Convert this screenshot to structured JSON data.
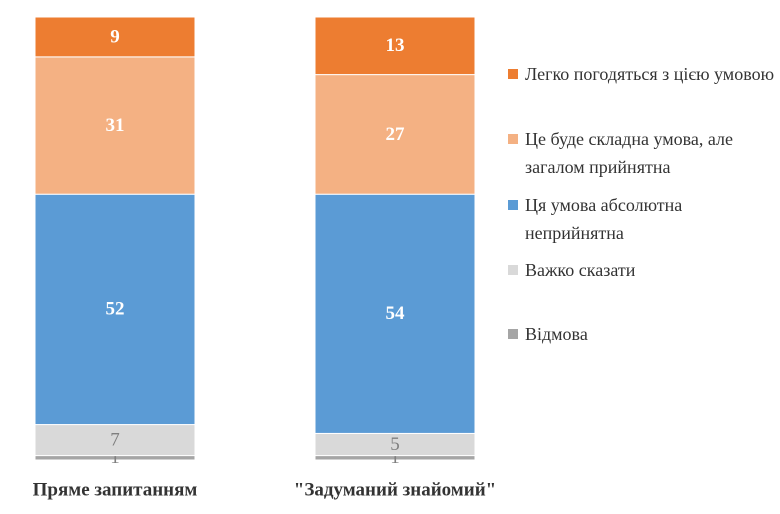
{
  "chart_data": {
    "type": "stacked_bar",
    "categories": [
      "Пряме запитанням",
      "\"Задуманий знайомий\""
    ],
    "series": [
      {
        "name": "Легко погодяться з цією умовою",
        "color": "#ED7D31",
        "label_color": "#ffffff",
        "values": [
          9,
          13
        ]
      },
      {
        "name": "Це буде складна умова, але загалом прийнятна",
        "color": "#F4B183",
        "label_color": "#ffffff",
        "values": [
          31,
          27
        ]
      },
      {
        "name": "Ця умова абсолютна неприйнятна",
        "color": "#5B9BD5",
        "label_color": "#ffffff",
        "values": [
          52,
          54
        ]
      },
      {
        "name": "Важко сказати",
        "color": "#D9D9D9",
        "label_color": "#7f7f7f",
        "values": [
          7,
          5
        ]
      },
      {
        "name": "Відмова",
        "color": "#A5A5A5",
        "label_color": "#7f7f7f",
        "values": [
          1,
          1
        ]
      }
    ]
  }
}
